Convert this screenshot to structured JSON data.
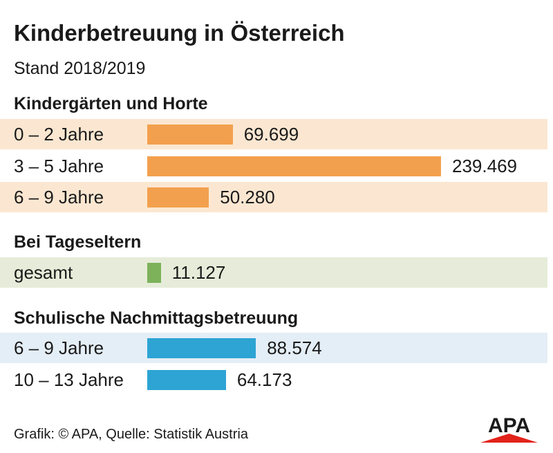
{
  "header": {
    "title": "Kinderbetreuung in Österreich",
    "subtitle": "Stand 2018/2019"
  },
  "colors": {
    "orange": "#f3a04e",
    "orange_band": "#fbe7d1",
    "green": "#7db25b",
    "green_band": "#e6ecd9",
    "blue": "#2da4d4",
    "blue_band": "#e4eef6",
    "logo_red": "#e2231a"
  },
  "chart_data": {
    "type": "bar",
    "orientation": "horizontal",
    "scale_max": 239469,
    "groups": [
      {
        "title": "Kindergärten und Horte",
        "color": "#f3a04e",
        "categories": [
          "0 – 2 Jahre",
          "3 – 5 Jahre",
          "6 – 9 Jahre"
        ],
        "values": [
          69699,
          239469,
          50280
        ],
        "labels": [
          "69.699",
          "239.469",
          "50.280"
        ]
      },
      {
        "title": "Bei Tageseltern",
        "color": "#7db25b",
        "categories": [
          "gesamt"
        ],
        "values": [
          11127
        ],
        "labels": [
          "11.127"
        ]
      },
      {
        "title": "Schulische Nachmittagsbetreuung",
        "color": "#2da4d4",
        "categories": [
          "6 – 9 Jahre",
          "10 – 13 Jahre"
        ],
        "values": [
          88574,
          64173
        ],
        "labels": [
          "88.574",
          "64.173"
        ]
      }
    ]
  },
  "footer": {
    "source": "Grafik: © APA, Quelle: Statistik Austria",
    "logo_text": "APA",
    "logo_icon": "apa-logo-icon"
  }
}
